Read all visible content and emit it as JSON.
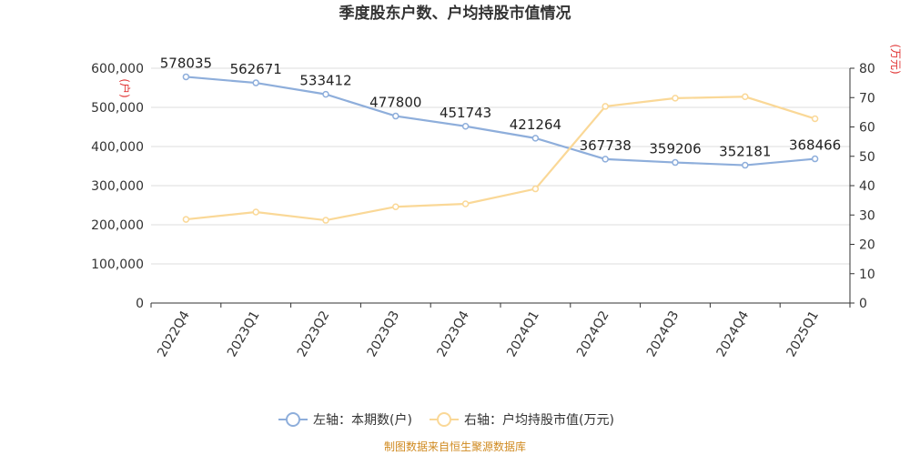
{
  "chart_data": {
    "type": "line",
    "title": "季度股东户数、户均持股市值情况",
    "categories": [
      "2022Q4",
      "2023Q1",
      "2023Q2",
      "2023Q3",
      "2023Q4",
      "2024Q1",
      "2024Q2",
      "2024Q3",
      "2024Q4",
      "2025Q1"
    ],
    "left_axis": {
      "unit": "(户)",
      "ylim": [
        0,
        600000
      ],
      "ticks": [
        "0",
        "100,000",
        "200,000",
        "300,000",
        "400,000",
        "500,000",
        "600,000"
      ],
      "tick_values": [
        0,
        100000,
        200000,
        300000,
        400000,
        500000,
        600000
      ]
    },
    "right_axis": {
      "unit": "(万元)",
      "ylim": [
        0,
        80
      ],
      "ticks": [
        "0",
        "10",
        "20",
        "30",
        "40",
        "50",
        "60",
        "70",
        "80"
      ],
      "tick_values": [
        0,
        10,
        20,
        30,
        40,
        50,
        60,
        70,
        80
      ]
    },
    "series": [
      {
        "name": "左轴：本期数(户)",
        "axis": "left",
        "color": "#8eaedb",
        "values": [
          578035,
          562671,
          533412,
          477800,
          451743,
          421264,
          367738,
          359206,
          352181,
          368466
        ],
        "labels": [
          "578035",
          "562671",
          "533412",
          "477800",
          "451743",
          "421264",
          "367738",
          "359206",
          "352181",
          "368466"
        ]
      },
      {
        "name": "右轴：户均持股市值(万元)",
        "axis": "right",
        "color": "#fad897",
        "values": [
          28.5,
          31.0,
          28.2,
          32.8,
          33.8,
          38.9,
          67.0,
          69.8,
          70.3,
          62.8
        ]
      }
    ],
    "legend_position": "bottom",
    "grid": true,
    "source": "制图数据来自恒生聚源数据库"
  }
}
